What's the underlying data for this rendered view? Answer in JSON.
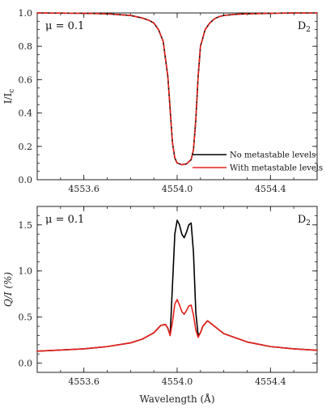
{
  "chart_data": [
    {
      "type": "line",
      "xlim": [
        4553.4,
        4554.6
      ],
      "ylim": [
        0.0,
        1.0
      ],
      "xticks": [
        4553.6,
        4554.0,
        4554.4
      ],
      "xtick_labels": [
        "4553.6",
        "4554.0",
        "4554.4"
      ],
      "yticks": [
        0.0,
        0.2,
        0.4,
        0.6,
        0.8,
        1.0
      ],
      "ytick_labels": [
        "0.0",
        "0.2",
        "0.4",
        "0.6",
        "0.8",
        "1.0"
      ],
      "ylabel": "I/Ic",
      "ylabel_main": "I/I",
      "ylabel_sub": "c",
      "annotation_left": "μ = 0.1",
      "annotation_right": "D",
      "annotation_right_sub": "2",
      "legend_position": "bottom-right",
      "series": [
        {
          "name": "No metastable levels",
          "color": "#000000",
          "dash": "solid",
          "x": [
            4553.4,
            4553.6,
            4553.7,
            4553.8,
            4553.85,
            4553.88,
            4553.9,
            4553.92,
            4553.94,
            4553.96,
            4553.97,
            4553.98,
            4553.99,
            4554.0,
            4554.02,
            4554.04,
            4554.06,
            4554.07,
            4554.08,
            4554.09,
            4554.1,
            4554.12,
            4554.14,
            4554.16,
            4554.18,
            4554.2,
            4554.25,
            4554.3,
            4554.4,
            4554.5,
            4554.6
          ],
          "y": [
            1.0,
            0.998,
            0.995,
            0.985,
            0.97,
            0.955,
            0.94,
            0.9,
            0.83,
            0.62,
            0.42,
            0.22,
            0.13,
            0.1,
            0.09,
            0.095,
            0.12,
            0.18,
            0.36,
            0.62,
            0.8,
            0.9,
            0.94,
            0.965,
            0.978,
            0.985,
            0.992,
            0.995,
            0.998,
            1.0,
            1.0
          ]
        },
        {
          "name": "With metastable levels",
          "color": "#e8201a",
          "dash": "dashed",
          "x": [
            4553.4,
            4553.6,
            4553.7,
            4553.8,
            4553.85,
            4553.88,
            4553.9,
            4553.92,
            4553.94,
            4553.96,
            4553.97,
            4553.98,
            4553.99,
            4554.0,
            4554.02,
            4554.04,
            4554.06,
            4554.07,
            4554.08,
            4554.09,
            4554.1,
            4554.12,
            4554.14,
            4554.16,
            4554.18,
            4554.2,
            4554.25,
            4554.3,
            4554.4,
            4554.5,
            4554.6
          ],
          "y": [
            1.0,
            0.998,
            0.995,
            0.985,
            0.97,
            0.955,
            0.94,
            0.9,
            0.83,
            0.62,
            0.42,
            0.22,
            0.13,
            0.1,
            0.09,
            0.095,
            0.12,
            0.18,
            0.36,
            0.62,
            0.8,
            0.9,
            0.94,
            0.965,
            0.978,
            0.985,
            0.992,
            0.995,
            0.998,
            1.0,
            1.0
          ]
        }
      ]
    },
    {
      "type": "line",
      "xlim": [
        4553.4,
        4554.6
      ],
      "ylim": [
        -0.1,
        1.7
      ],
      "xticks": [
        4553.6,
        4554.0,
        4554.4
      ],
      "xtick_labels": [
        "4553.6",
        "4554.0",
        "4554.4"
      ],
      "yticks": [
        0.0,
        0.5,
        1.0,
        1.5
      ],
      "ytick_labels": [
        "0.0",
        "0.5",
        "1.0",
        "1.5"
      ],
      "xlabel": "Wavelength (Å)",
      "ylabel": "Q/I (%)",
      "annotation_left": "μ = 0.1",
      "annotation_right": "D",
      "annotation_right_sub": "2",
      "series": [
        {
          "name": "No metastable levels",
          "color": "#000000",
          "x": [
            4553.4,
            4553.6,
            4553.7,
            4553.8,
            4553.85,
            4553.9,
            4553.93,
            4553.95,
            4553.96,
            4553.97,
            4553.98,
            4553.99,
            4554.0,
            4554.01,
            4554.02,
            4554.03,
            4554.04,
            4554.05,
            4554.06,
            4554.07,
            4554.08,
            4554.09,
            4554.1,
            4554.11,
            4554.13,
            4554.15,
            4554.2,
            4554.3,
            4554.4,
            4554.5,
            4554.6
          ],
          "y": [
            0.13,
            0.155,
            0.18,
            0.22,
            0.26,
            0.33,
            0.41,
            0.42,
            0.38,
            0.3,
            0.85,
            1.4,
            1.55,
            1.5,
            1.4,
            1.36,
            1.42,
            1.5,
            1.52,
            1.2,
            0.55,
            0.3,
            0.33,
            0.4,
            0.46,
            0.42,
            0.32,
            0.23,
            0.18,
            0.155,
            0.14
          ]
        },
        {
          "name": "With metastable levels",
          "color": "#e8201a",
          "x": [
            4553.4,
            4553.6,
            4553.7,
            4553.8,
            4553.85,
            4553.9,
            4553.93,
            4553.95,
            4553.96,
            4553.97,
            4553.98,
            4553.99,
            4554.0,
            4554.01,
            4554.02,
            4554.03,
            4554.04,
            4554.05,
            4554.06,
            4554.07,
            4554.08,
            4554.09,
            4554.1,
            4554.11,
            4554.13,
            4554.15,
            4554.2,
            4554.3,
            4554.4,
            4554.5,
            4554.6
          ],
          "y": [
            0.13,
            0.155,
            0.18,
            0.22,
            0.26,
            0.33,
            0.41,
            0.42,
            0.38,
            0.3,
            0.45,
            0.64,
            0.69,
            0.63,
            0.56,
            0.53,
            0.57,
            0.62,
            0.63,
            0.52,
            0.36,
            0.28,
            0.33,
            0.4,
            0.46,
            0.42,
            0.32,
            0.23,
            0.18,
            0.155,
            0.14
          ]
        }
      ]
    }
  ]
}
